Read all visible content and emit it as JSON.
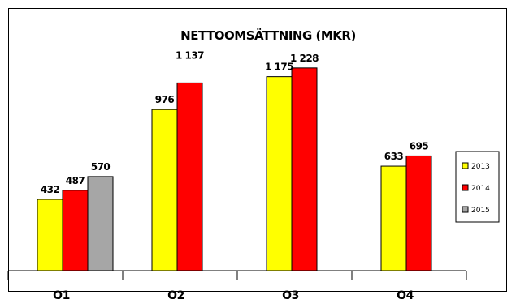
{
  "chart_data": {
    "type": "bar",
    "title": "NETTOOMSÄTTNING (MKR)",
    "xlabel": "",
    "ylabel": "",
    "categories": [
      "Q1",
      "Q2",
      "Q3",
      "Q4"
    ],
    "series": [
      {
        "name": "2013",
        "color": "#ffff00",
        "values": [
          432,
          976,
          1175,
          633
        ],
        "labels": [
          "432",
          "976",
          "1 175",
          "633"
        ]
      },
      {
        "name": "2014",
        "color": "#ff0000",
        "values": [
          487,
          1137,
          1228,
          695
        ],
        "labels": [
          "487",
          "1 137",
          "1 228",
          "695"
        ]
      },
      {
        "name": "2015",
        "color": "#a6a6a6",
        "values": [
          570,
          null,
          null,
          null
        ],
        "labels": [
          "570",
          "",
          "",
          ""
        ]
      }
    ],
    "ylim": [
      0,
      1350
    ],
    "grid": false,
    "legend_position": "right"
  }
}
